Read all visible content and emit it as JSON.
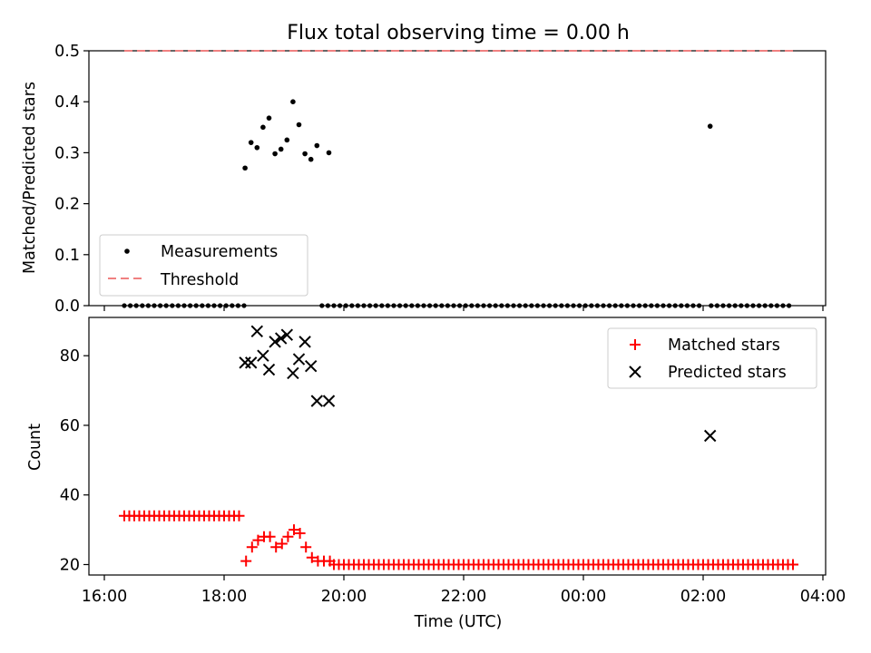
{
  "chart_data": {
    "title": "Flux total observing time = 0.00 h",
    "xlabel": "Time (UTC)",
    "x_ticks": [
      "16:00",
      "18:00",
      "20:00",
      "22:00",
      "00:00",
      "02:00",
      "04:00"
    ],
    "x_range": [
      "16:00",
      "04:00 (next day)"
    ],
    "colors": {
      "measurement": "#000000",
      "threshold": "#f08080",
      "matched": "#ff0000",
      "predicted": "#000000"
    },
    "panels": [
      {
        "type": "scatter",
        "ylabel": "Matched/Predicted stars",
        "ylim": [
          0,
          0.5
        ],
        "yticks": [
          "0.0",
          "0.1",
          "0.2",
          "0.3",
          "0.4",
          "0.5"
        ],
        "legend": {
          "placement": "lower-left",
          "entries": [
            "Measurements",
            "Threshold"
          ]
        },
        "threshold": {
          "name": "Threshold",
          "value": 0.5,
          "x_start": "16:20",
          "x_end": "03:30"
        },
        "series": [
          {
            "name": "Measurements",
            "zeros": {
              "start": "16:20",
              "end": "03:30",
              "step_min": 6,
              "gaps": [
                [
                  "18:22",
                  "19:33"
                ],
                [
                  "02:00",
                  "02:06"
                ]
              ]
            },
            "points": [
              [
                "18:21",
                0.27
              ],
              [
                "18:27",
                0.32
              ],
              [
                "18:33",
                0.31
              ],
              [
                "18:39",
                0.35
              ],
              [
                "18:45",
                0.368
              ],
              [
                "18:51",
                0.298
              ],
              [
                "18:57",
                0.307
              ],
              [
                "19:03",
                0.325
              ],
              [
                "19:09",
                0.4
              ],
              [
                "19:15",
                0.355
              ],
              [
                "19:21",
                0.298
              ],
              [
                "19:27",
                0.287
              ],
              [
                "19:33",
                0.314
              ],
              [
                "19:45",
                0.3
              ],
              [
                "02:07",
                0.352
              ]
            ]
          }
        ]
      },
      {
        "type": "scatter",
        "ylabel": "Count",
        "ylim": [
          17,
          91
        ],
        "yticks": [
          "20",
          "40",
          "60",
          "80"
        ],
        "legend": {
          "placement": "top-right",
          "entries": [
            "Matched stars",
            "Predicted stars"
          ]
        },
        "series": [
          {
            "name": "Matched stars",
            "marker": "plus",
            "runs": [
              {
                "start": "16:20",
                "end": "18:15",
                "step_min": 5,
                "value": 34
              },
              {
                "start": "19:50",
                "end": "03:30",
                "step_min": 5,
                "value": 20
              }
            ],
            "points": [
              [
                "18:22",
                21
              ],
              [
                "18:28",
                25
              ],
              [
                "18:34",
                27
              ],
              [
                "18:40",
                28
              ],
              [
                "18:46",
                28
              ],
              [
                "18:52",
                25
              ],
              [
                "18:58",
                26
              ],
              [
                "19:04",
                28
              ],
              [
                "19:10",
                30
              ],
              [
                "19:16",
                29
              ],
              [
                "19:22",
                25
              ],
              [
                "19:28",
                22
              ],
              [
                "19:34",
                21
              ],
              [
                "19:40",
                21
              ],
              [
                "19:46",
                21
              ]
            ]
          },
          {
            "name": "Predicted stars",
            "marker": "x",
            "points": [
              [
                "18:21",
                78
              ],
              [
                "18:27",
                78
              ],
              [
                "18:33",
                87
              ],
              [
                "18:39",
                80
              ],
              [
                "18:45",
                76
              ],
              [
                "18:51",
                84
              ],
              [
                "18:57",
                85
              ],
              [
                "19:03",
                86
              ],
              [
                "19:09",
                75
              ],
              [
                "19:15",
                79
              ],
              [
                "19:21",
                84
              ],
              [
                "19:27",
                77
              ],
              [
                "19:33",
                67
              ],
              [
                "19:45",
                67
              ],
              [
                "02:07",
                57
              ]
            ]
          }
        ]
      }
    ]
  }
}
